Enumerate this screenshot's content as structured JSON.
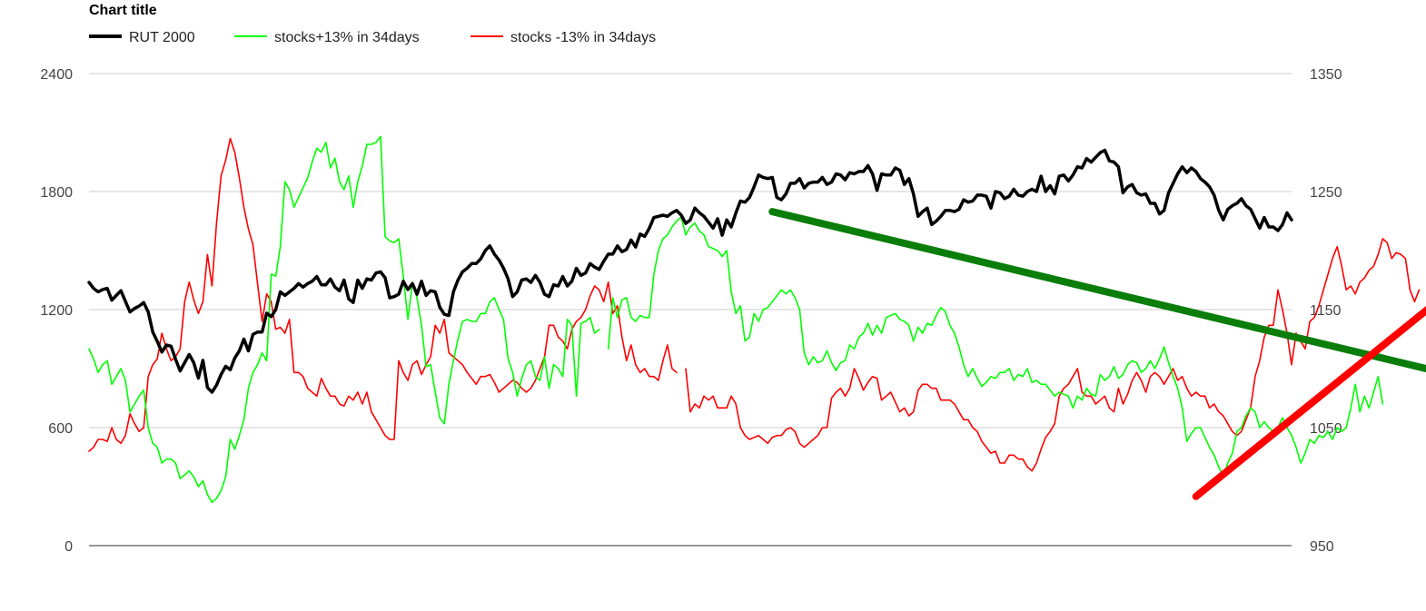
{
  "chart_data": {
    "type": "line",
    "title": "Chart title",
    "legend_position": "top-left",
    "grid": true,
    "left_axis": {
      "range": [
        0,
        2400
      ],
      "ticks": [
        "0",
        "600",
        "1200",
        "1800",
        "2400"
      ]
    },
    "right_axis": {
      "range": [
        950,
        1350
      ],
      "ticks": [
        "950",
        "1050",
        "1150",
        "1250",
        "1350"
      ]
    },
    "series": [
      {
        "name": "RUT 2000",
        "color": "#000000",
        "axis": "right",
        "values": [
          1173,
          1168,
          1165,
          1167,
          1168,
          1158,
          1162,
          1166,
          1157,
          1148,
          1151,
          1153,
          1156,
          1148,
          1131,
          1123,
          1114,
          1120,
          1119,
          1108,
          1098,
          1105,
          1112,
          1105,
          1092,
          1107,
          1084,
          1080,
          1086,
          1095,
          1102,
          1099,
          1109,
          1115,
          1125,
          1115,
          1129,
          1131,
          1131,
          1147,
          1144,
          1150,
          1165,
          1162,
          1165,
          1168,
          1172,
          1169,
          1172,
          1174,
          1178,
          1171,
          1171,
          1176,
          1169,
          1166,
          1175,
          1159,
          1156,
          1175,
          1168,
          1176,
          1175,
          1181,
          1182,
          1177,
          1160,
          1161,
          1163,
          1174,
          1167,
          1172,
          1163,
          1174,
          1162,
          1166,
          1165,
          1152,
          1146,
          1145,
          1165,
          1175,
          1182,
          1185,
          1189,
          1189,
          1193,
          1200,
          1204,
          1197,
          1192,
          1185,
          1176,
          1161,
          1165,
          1175,
          1176,
          1173,
          1179,
          1173,
          1163,
          1161,
          1171,
          1170,
          1178,
          1170,
          1174,
          1185,
          1179,
          1181,
          1189,
          1186,
          1184,
          1191,
          1197,
          1197,
          1204,
          1199,
          1201,
          1209,
          1203,
          1214,
          1212,
          1219,
          1228,
          1229,
          1230,
          1229,
          1232,
          1234,
          1230,
          1223,
          1226,
          1236,
          1232,
          1229,
          1224,
          1219,
          1227,
          1213,
          1226,
          1220,
          1232,
          1242,
          1241,
          1245,
          1254,
          1264,
          1262,
          1261,
          1262,
          1245,
          1243,
          1248,
          1257,
          1257,
          1261,
          1253,
          1257,
          1258,
          1258,
          1262,
          1256,
          1258,
          1265,
          1264,
          1260,
          1266,
          1265,
          1267,
          1267,
          1272,
          1265,
          1251,
          1265,
          1264,
          1264,
          1270,
          1268,
          1256,
          1261,
          1248,
          1229,
          1233,
          1236,
          1222,
          1225,
          1229,
          1234,
          1234,
          1233,
          1235,
          1243,
          1241,
          1242,
          1247,
          1247,
          1246,
          1236,
          1250,
          1249,
          1244,
          1246,
          1252,
          1247,
          1246,
          1250,
          1252,
          1250,
          1263,
          1250,
          1255,
          1248,
          1263,
          1264,
          1259,
          1264,
          1271,
          1270,
          1278,
          1275,
          1279,
          1283,
          1285,
          1276,
          1275,
          1271,
          1249,
          1254,
          1256,
          1249,
          1247,
          1248,
          1240,
          1240,
          1231,
          1234,
          1249,
          1257,
          1265,
          1271,
          1266,
          1270,
          1267,
          1261,
          1258,
          1254,
          1247,
          1234,
          1226,
          1235,
          1238,
          1240,
          1244,
          1238,
          1235,
          1227,
          1219,
          1228,
          1220,
          1220,
          1217,
          1222,
          1232,
          1226
        ]
      },
      {
        "name": "stocks+13% in 34days",
        "color": "#00ff00",
        "axis": "left",
        "values": [
          1000,
          950,
          880,
          920,
          940,
          820,
          860,
          900,
          840,
          680,
          720,
          760,
          790,
          600,
          520,
          500,
          420,
          440,
          440,
          420,
          340,
          360,
          380,
          350,
          300,
          330,
          260,
          220,
          240,
          280,
          350,
          540,
          490,
          560,
          640,
          800,
          880,
          920,
          980,
          940,
          1380,
          1370,
          1520,
          1850,
          1810,
          1720,
          1770,
          1820,
          1870,
          1950,
          2020,
          2000,
          2050,
          1920,
          1970,
          1850,
          1810,
          1880,
          1720,
          1850,
          1930,
          2040,
          2040,
          2050,
          2080,
          1570,
          1550,
          1540,
          1560,
          1370,
          1150,
          1340,
          1260,
          1120,
          910,
          920,
          780,
          650,
          620,
          820,
          940,
          1050,
          1140,
          1150,
          1140,
          1140,
          1180,
          1180,
          1240,
          1260,
          1200,
          1150,
          950,
          880,
          760,
          850,
          920,
          940,
          860,
          840,
          960,
          800,
          920,
          900,
          860,
          1150,
          1120,
          760,
          1130,
          1140,
          1160,
          1080,
          1100,
          null,
          1000,
          1260,
          1160,
          1250,
          1260,
          1160,
          1140,
          1170,
          1160,
          1160,
          1380,
          1500,
          1560,
          1580,
          1620,
          1650,
          1670,
          1580,
          1620,
          1640,
          1600,
          1580,
          1520,
          1510,
          1500,
          1470,
          1500,
          1290,
          1180,
          1220,
          1040,
          1060,
          1180,
          1140,
          1200,
          1210,
          1240,
          1270,
          1300,
          1280,
          1300,
          1260,
          1200,
          980,
          920,
          960,
          930,
          940,
          990,
          930,
          890,
          930,
          940,
          1020,
          1000,
          1060,
          1080,
          1130,
          1070,
          1120,
          1080,
          1160,
          1170,
          1180,
          1150,
          1140,
          1120,
          1040,
          1110,
          1080,
          1130,
          1120,
          1170,
          1210,
          1190,
          1120,
          1080,
          1010,
          920,
          860,
          900,
          850,
          810,
          830,
          860,
          850,
          880,
          880,
          900,
          840,
          870,
          860,
          900,
          830,
          840,
          820,
          820,
          790,
          760,
          780,
          770,
          760,
          700,
          760,
          740,
          800,
          770,
          760,
          870,
          840,
          860,
          910,
          850,
          870,
          920,
          940,
          930,
          880,
          900,
          940,
          900,
          950,
          1010,
          930,
          860,
          800,
          700,
          530,
          570,
          600,
          600,
          550,
          500,
          460,
          400,
          350,
          420,
          470,
          580,
          600,
          660,
          700,
          680,
          600,
          630,
          600,
          580,
          600,
          650,
          600,
          560,
          500,
          420,
          470,
          540,
          520,
          560,
          550,
          580,
          540,
          600,
          580,
          600,
          700,
          820,
          680,
          760,
          700,
          780,
          860,
          720
        ]
      },
      {
        "name": "stocks -13% in 34days",
        "color": "#ff0000",
        "axis": "left",
        "values": [
          480,
          500,
          540,
          540,
          530,
          600,
          540,
          520,
          560,
          670,
          620,
          580,
          600,
          860,
          920,
          950,
          1080,
          1000,
          940,
          960,
          1000,
          1240,
          1340,
          1250,
          1180,
          1240,
          1480,
          1320,
          1640,
          1880,
          1960,
          2070,
          2000,
          1870,
          1720,
          1610,
          1530,
          1330,
          1140,
          1280,
          1240,
          1100,
          1110,
          1080,
          1150,
          880,
          880,
          860,
          800,
          780,
          760,
          850,
          800,
          760,
          760,
          720,
          710,
          760,
          740,
          780,
          720,
          780,
          680,
          640,
          600,
          560,
          540,
          540,
          940,
          880,
          840,
          920,
          940,
          870,
          920,
          960,
          1120,
          1080,
          1150,
          980,
          960,
          940,
          920,
          880,
          850,
          820,
          860,
          860,
          870,
          830,
          780,
          800,
          820,
          840,
          830,
          800,
          780,
          800,
          840,
          900,
          960,
          1120,
          1120,
          1060,
          1040,
          1000,
          1100,
          1140,
          1160,
          1200,
          1270,
          1320,
          1300,
          1240,
          1340,
          1180,
          1220,
          1060,
          940,
          1020,
          920,
          880,
          900,
          860,
          860,
          840,
          940,
          1020,
          900,
          880,
          null,
          900,
          680,
          720,
          700,
          760,
          740,
          760,
          700,
          700,
          700,
          760,
          720,
          600,
          560,
          540,
          550,
          560,
          540,
          520,
          550,
          560,
          560,
          590,
          600,
          580,
          520,
          500,
          520,
          540,
          560,
          600,
          600,
          750,
          780,
          800,
          760,
          800,
          900,
          850,
          790,
          830,
          860,
          850,
          740,
          760,
          780,
          730,
          680,
          700,
          660,
          680,
          790,
          820,
          820,
          800,
          800,
          740,
          740,
          740,
          720,
          680,
          640,
          640,
          600,
          580,
          530,
          500,
          470,
          480,
          420,
          420,
          460,
          460,
          440,
          440,
          400,
          380,
          420,
          490,
          550,
          580,
          620,
          760,
          800,
          820,
          860,
          900,
          780,
          760,
          760,
          720,
          740,
          760,
          700,
          680,
          800,
          720,
          770,
          840,
          880,
          840,
          780,
          860,
          880,
          860,
          820,
          860,
          900,
          840,
          860,
          800,
          760,
          780,
          760,
          760,
          700,
          720,
          680,
          660,
          620,
          580,
          560,
          580,
          640,
          700,
          860,
          940,
          1060,
          1120,
          1120,
          1300,
          1200,
          1080,
          920,
          1080,
          1040,
          1000,
          1140,
          1160,
          1220,
          1300,
          1380,
          1460,
          1520,
          1420,
          1300,
          1320,
          1280,
          1340,
          1360,
          1400,
          1420,
          1480,
          1560,
          1540,
          1460,
          1490,
          1480,
          1460,
          1300,
          1240,
          1300
        ]
      }
    ],
    "annotations": [
      {
        "name": "green-trend-arrow",
        "color": "#0a7d0a",
        "axis": "right",
        "from": {
          "index": 150,
          "value": 1233
        },
        "to": {
          "index": 300,
          "value": 1094
        }
      },
      {
        "name": "red-trend-arrow",
        "color": "#ff0000",
        "axis": "left",
        "from": {
          "index": 243,
          "value": 250
        },
        "to": {
          "index": 297,
          "value": 1260
        }
      }
    ]
  }
}
